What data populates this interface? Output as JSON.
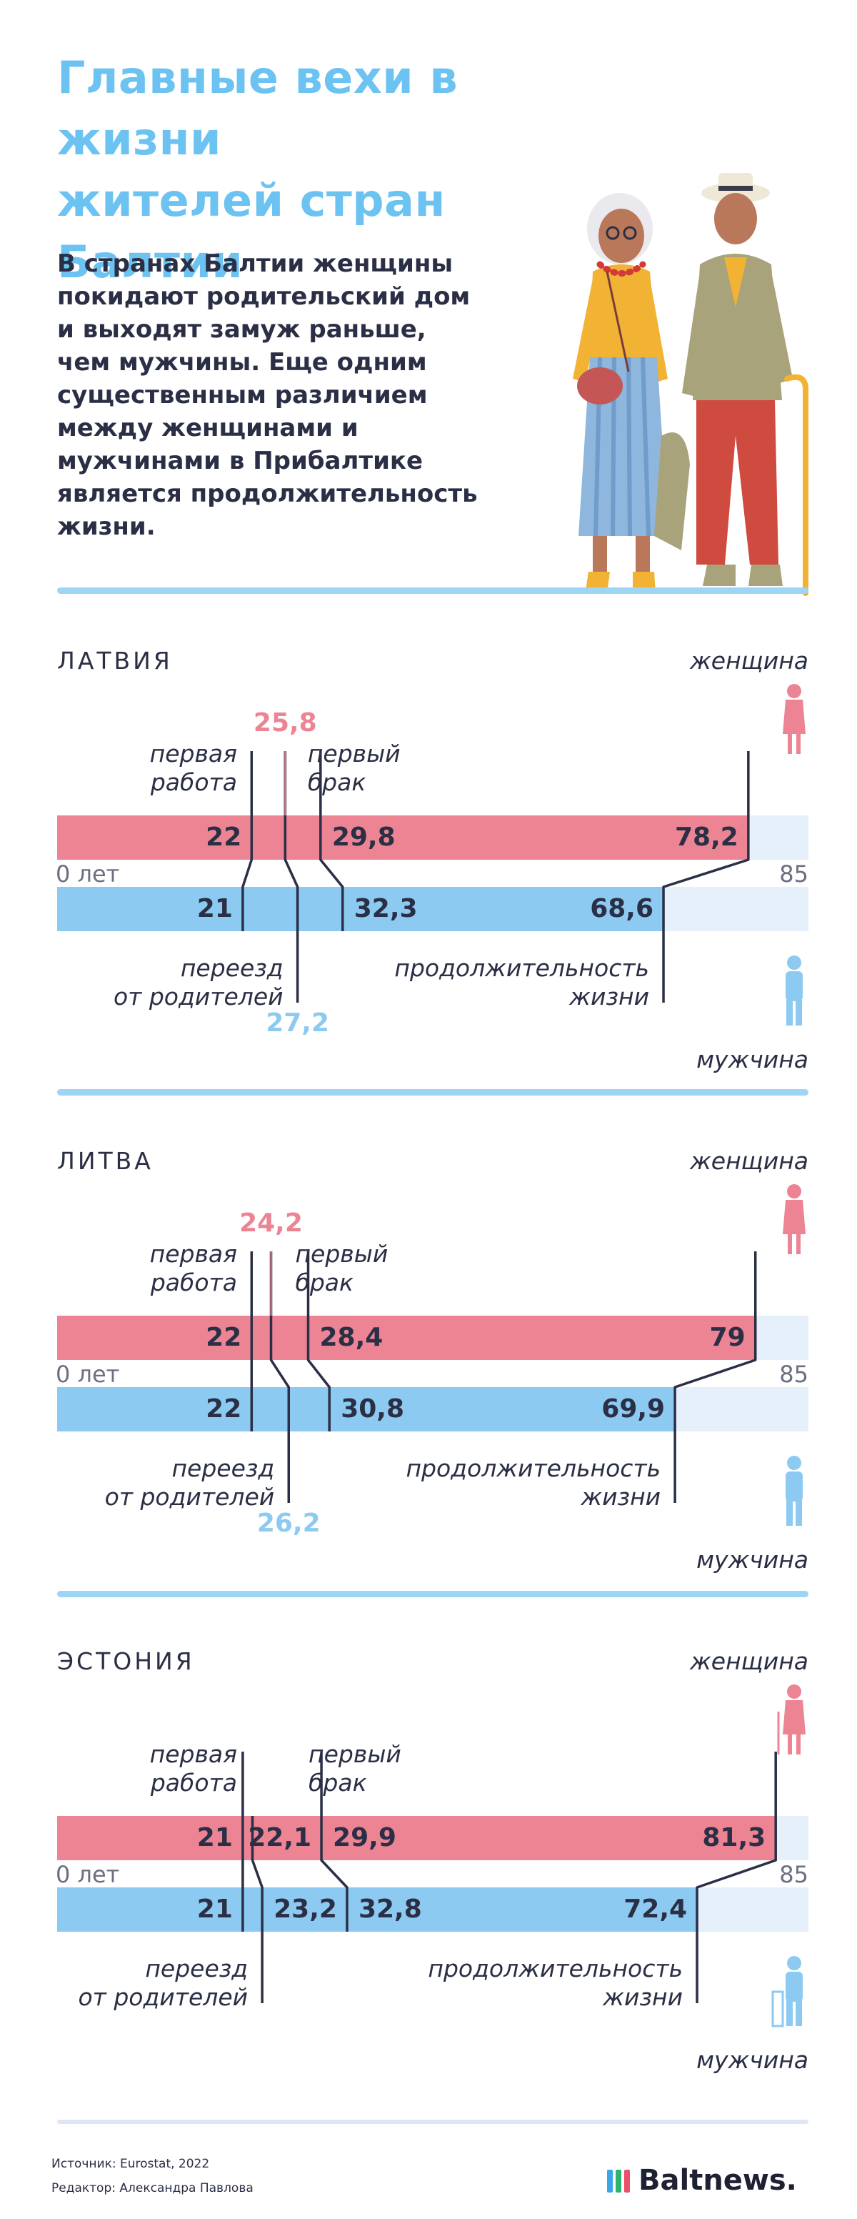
{
  "title_lines": [
    "Главные вехи в жизни",
    "жителей стран Балтии"
  ],
  "lede_lines": [
    "В странах Балтии женщины",
    "покидают родительский дом",
    "и выходят замуж раньше,",
    "чем мужчины. Еще одним",
    "существенным различием",
    "между женщинами и",
    "мужчинами в Прибалтике",
    "является продолжительность",
    "жизни."
  ],
  "labels": {
    "woman": "женщина",
    "man": "мужчина",
    "first_job": [
      "первая",
      "работа"
    ],
    "first_marriage": [
      "первый",
      "брак"
    ],
    "move_out": [
      "переезд",
      "от родителей"
    ],
    "life": [
      "продолжительность",
      "жизни"
    ],
    "axis_min": "0 лет",
    "axis_max": "85"
  },
  "colors": {
    "women": "#ec8494",
    "men": "#8ccaf2",
    "bar_bg": "#e5f0fb",
    "title": "#6cc3f2",
    "lines": "#2b2f45"
  },
  "icons": [
    "elderly-couple-illustration",
    "woman-icon",
    "man-icon",
    "elderly-woman-with-cane-icon",
    "elderly-man-with-walker-icon",
    "baltnews-logo-bars"
  ],
  "chart_data": [
    {
      "type": "bar",
      "title": "ЛАТВИЯ",
      "xlim": [
        0,
        85
      ],
      "categories": [
        "первая работа",
        "переезд от родителей",
        "первый брак",
        "продолжительность жизни"
      ],
      "series": [
        {
          "name": "женщина",
          "values": [
            22,
            25.8,
            29.8,
            78.2
          ],
          "labels": [
            "22",
            "25,8",
            "29,8",
            "78,2"
          ]
        },
        {
          "name": "мужчина",
          "values": [
            21,
            27.2,
            32.3,
            68.6
          ],
          "labels": [
            "21",
            "27,2",
            "32,3",
            "68,6"
          ]
        }
      ]
    },
    {
      "type": "bar",
      "title": "ЛИТВА",
      "xlim": [
        0,
        85
      ],
      "categories": [
        "первая работа",
        "переезд от родителей",
        "первый брак",
        "продолжительность жизни"
      ],
      "series": [
        {
          "name": "женщина",
          "values": [
            22,
            24.2,
            28.4,
            79
          ],
          "labels": [
            "22",
            "24,2",
            "28,4",
            "79"
          ]
        },
        {
          "name": "мужчина",
          "values": [
            22,
            26.2,
            30.8,
            69.9
          ],
          "labels": [
            "22",
            "26,2",
            "30,8",
            "69,9"
          ]
        }
      ]
    },
    {
      "type": "bar",
      "title": "ЭСТОНИЯ",
      "xlim": [
        0,
        85
      ],
      "categories": [
        "первая работа",
        "переезд от родителей",
        "первый брак",
        "продолжительность жизни"
      ],
      "series": [
        {
          "name": "женщина",
          "values": [
            21,
            22.1,
            29.9,
            81.3
          ],
          "labels": [
            "21",
            "22,1",
            "29,9",
            "81,3"
          ]
        },
        {
          "name": "мужчина",
          "values": [
            21,
            23.2,
            32.8,
            72.4
          ],
          "labels": [
            "21",
            "23,2",
            "32,8",
            "72,4"
          ]
        }
      ]
    }
  ],
  "footer": {
    "source": "Источник: Eurostat, 2022",
    "editor": "Редактор: Александра Павлова",
    "brand": "Baltnews."
  }
}
